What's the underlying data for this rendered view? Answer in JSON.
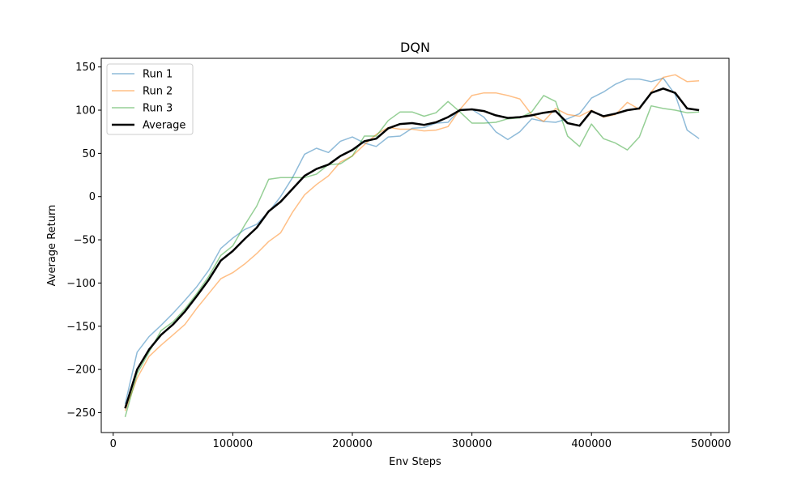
{
  "chart_data": {
    "type": "line",
    "title": "DQN",
    "xlabel": "Env Steps",
    "ylabel": "Average Return",
    "xlim": [
      -10000,
      515000
    ],
    "ylim": [
      -273,
      160
    ],
    "x_ticks": [
      0,
      100000,
      200000,
      300000,
      400000,
      500000
    ],
    "y_ticks": [
      -250,
      -200,
      -150,
      -100,
      -50,
      0,
      50,
      100,
      150
    ],
    "grid": false,
    "legend_position": "top-left",
    "x": [
      10000,
      20000,
      30000,
      40000,
      50000,
      60000,
      70000,
      80000,
      90000,
      100000,
      110000,
      120000,
      130000,
      140000,
      150000,
      160000,
      170000,
      180000,
      190000,
      200000,
      210000,
      220000,
      230000,
      240000,
      250000,
      260000,
      270000,
      280000,
      290000,
      300000,
      310000,
      320000,
      330000,
      340000,
      350000,
      360000,
      370000,
      380000,
      390000,
      400000,
      410000,
      420000,
      430000,
      440000,
      450000,
      460000,
      470000,
      480000,
      490000
    ],
    "series": [
      {
        "name": "Run 1",
        "color": "#1f77b4",
        "alpha": 0.5,
        "width": 1.5,
        "values": [
          -240,
          -180,
          -162,
          -149,
          -135,
          -120,
          -104,
          -85,
          -60,
          -48,
          -38,
          -32,
          -18,
          0,
          22,
          49,
          56,
          51,
          64,
          69,
          62,
          58,
          69,
          70,
          79,
          80,
          85,
          86,
          101,
          101,
          92,
          75,
          66,
          75,
          90,
          87,
          86,
          90,
          96,
          114,
          121,
          130,
          136,
          136,
          133,
          137,
          118,
          77,
          67
        ]
      },
      {
        "name": "Run 2",
        "color": "#ff7f0e",
        "alpha": 0.5,
        "width": 1.5,
        "values": [
          -248,
          -210,
          -185,
          -172,
          -160,
          -148,
          -129,
          -112,
          -95,
          -88,
          -78,
          -66,
          -52,
          -42,
          -18,
          2,
          14,
          24,
          40,
          47,
          60,
          72,
          80,
          78,
          78,
          76,
          77,
          81,
          101,
          117,
          120,
          120,
          117,
          113,
          95,
          87,
          102,
          95,
          93,
          100,
          92,
          95,
          109,
          101,
          121,
          138,
          141,
          133,
          134
        ]
      },
      {
        "name": "Run 3",
        "color": "#2ca02c",
        "alpha": 0.5,
        "width": 1.5,
        "values": [
          -255,
          -205,
          -180,
          -155,
          -145,
          -130,
          -112,
          -92,
          -68,
          -57,
          -33,
          -11,
          20,
          22,
          22,
          22,
          26,
          37,
          38,
          47,
          70,
          70,
          88,
          98,
          98,
          93,
          97,
          110,
          98,
          85,
          85,
          86,
          90,
          91,
          98,
          117,
          110,
          70,
          58,
          84,
          67,
          62,
          54,
          69,
          105,
          102,
          100,
          97,
          98
        ]
      },
      {
        "name": "Average",
        "color": "#000000",
        "alpha": 1,
        "width": 2.5,
        "values": [
          -245,
          -200,
          -177,
          -160,
          -148,
          -133,
          -115,
          -96,
          -74,
          -63,
          -49,
          -36,
          -17,
          -6,
          9,
          24,
          32,
          37,
          47,
          54,
          64,
          67,
          79,
          84,
          85,
          83,
          86,
          92,
          100,
          101,
          99,
          94,
          91,
          92,
          94,
          97,
          99,
          85,
          82,
          99,
          93,
          96,
          100,
          102,
          120,
          125,
          120,
          102,
          100
        ]
      }
    ]
  }
}
